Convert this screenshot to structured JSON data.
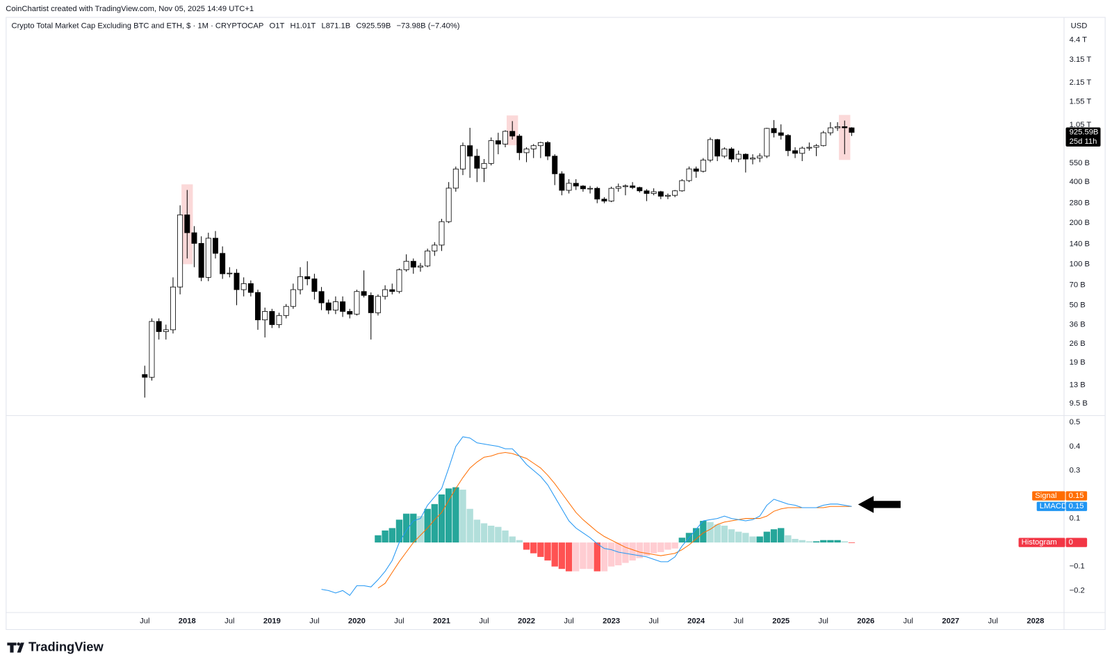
{
  "credit": "CoinChartist created with TradingView.com, Nov 05, 2025 14:49 UTC+1",
  "brand": "TradingView",
  "chart_data": {
    "type": "candlestick",
    "title": "Crypto Total Market Cap Excluding BTC and ETH, $ · 1M · CRYPTOCAP",
    "ohlc_text": [
      "O1T",
      "H1.01T",
      "L871.1B",
      "C925.59B",
      "−73.98B (−7.40%)"
    ],
    "currency": "USD",
    "last_value_label": "925.59B",
    "countdown": "25d 11h",
    "log_scale": true,
    "grid": false,
    "up_color": "#ffffff",
    "down_color": "#000000",
    "wick_color": "#000000",
    "highlights": [
      "2018-01",
      "2021-11",
      "2025-10"
    ],
    "highlight_color": "#fbd9d9",
    "x": [
      "2017-07",
      "2017-08",
      "2017-09",
      "2017-10",
      "2017-11",
      "2017-12",
      "2018-01",
      "2018-02",
      "2018-03",
      "2018-04",
      "2018-05",
      "2018-06",
      "2018-07",
      "2018-08",
      "2018-09",
      "2018-10",
      "2018-11",
      "2018-12",
      "2019-01",
      "2019-02",
      "2019-03",
      "2019-04",
      "2019-05",
      "2019-06",
      "2019-07",
      "2019-08",
      "2019-09",
      "2019-10",
      "2019-11",
      "2019-12",
      "2020-01",
      "2020-02",
      "2020-03",
      "2020-04",
      "2020-05",
      "2020-06",
      "2020-07",
      "2020-08",
      "2020-09",
      "2020-10",
      "2020-11",
      "2020-12",
      "2021-01",
      "2021-02",
      "2021-03",
      "2021-04",
      "2021-05",
      "2021-06",
      "2021-07",
      "2021-08",
      "2021-09",
      "2021-10",
      "2021-11",
      "2021-12",
      "2022-01",
      "2022-02",
      "2022-03",
      "2022-04",
      "2022-05",
      "2022-06",
      "2022-07",
      "2022-08",
      "2022-09",
      "2022-10",
      "2022-11",
      "2022-12",
      "2023-01",
      "2023-02",
      "2023-03",
      "2023-04",
      "2023-05",
      "2023-06",
      "2023-07",
      "2023-08",
      "2023-09",
      "2023-10",
      "2023-11",
      "2023-12",
      "2024-01",
      "2024-02",
      "2024-03",
      "2024-04",
      "2024-05",
      "2024-06",
      "2024-07",
      "2024-08",
      "2024-09",
      "2024-10",
      "2024-11",
      "2024-12",
      "2025-01",
      "2025-02",
      "2025-03",
      "2025-04",
      "2025-05",
      "2025-06",
      "2025-07",
      "2025-08",
      "2025-09",
      "2025-10",
      "2025-11"
    ],
    "open": [
      15.5,
      14.8,
      38,
      32,
      33,
      68,
      230,
      170,
      142,
      80,
      155,
      120,
      85,
      86,
      65,
      72,
      62,
      39,
      45,
      36,
      42,
      49,
      65,
      81,
      78,
      63,
      52,
      46,
      53,
      45,
      43,
      63,
      59,
      44,
      58,
      65,
      63,
      91,
      105,
      95,
      97,
      125,
      138,
      205,
      361,
      499,
      740,
      620,
      505,
      548,
      805,
      760,
      943,
      870,
      657,
      700,
      740,
      780,
      620,
      460,
      348,
      392,
      374,
      357,
      360,
      300,
      290,
      360,
      370,
      375,
      365,
      345,
      330,
      340,
      315,
      320,
      345,
      410,
      500,
      480,
      580,
      820,
      620,
      700,
      590,
      640,
      590,
      600,
      620,
      990,
      920,
      880,
      680,
      650,
      710,
      720,
      740,
      920,
      1000,
      1020,
      1000
    ],
    "high": [
      18,
      40,
      40,
      36,
      80,
      270,
      350,
      190,
      160,
      170,
      175,
      135,
      95,
      92,
      80,
      76,
      65,
      48,
      47,
      44,
      51,
      72,
      95,
      105,
      85,
      68,
      55,
      58,
      58,
      47,
      65,
      90,
      62,
      60,
      70,
      72,
      93,
      118,
      110,
      102,
      130,
      145,
      215,
      400,
      520,
      780,
      1000,
      700,
      590,
      850,
      920,
      960,
      1120,
      900,
      720,
      760,
      790,
      800,
      640,
      480,
      420,
      420,
      380,
      375,
      370,
      310,
      370,
      390,
      385,
      400,
      370,
      355,
      360,
      345,
      330,
      350,
      420,
      520,
      520,
      600,
      850,
      830,
      720,
      720,
      680,
      650,
      640,
      650,
      1000,
      1140,
      1060,
      900,
      720,
      730,
      780,
      760,
      950,
      1100,
      1100,
      1130,
      1010
    ],
    "low": [
      10.5,
      14,
      28,
      28,
      31,
      60,
      110,
      95,
      75,
      75,
      110,
      78,
      80,
      50,
      58,
      58,
      33,
      29,
      34,
      34,
      40,
      47,
      60,
      70,
      55,
      46,
      43,
      43,
      41,
      40,
      42,
      57,
      28,
      42,
      55,
      60,
      61,
      88,
      85,
      88,
      95,
      115,
      125,
      200,
      340,
      450,
      430,
      400,
      400,
      530,
      640,
      720,
      820,
      580,
      560,
      600,
      600,
      580,
      380,
      320,
      330,
      350,
      340,
      330,
      280,
      280,
      285,
      340,
      320,
      355,
      335,
      290,
      320,
      300,
      300,
      310,
      340,
      400,
      430,
      470,
      560,
      570,
      600,
      560,
      560,
      470,
      540,
      560,
      600,
      850,
      820,
      620,
      600,
      570,
      680,
      620,
      730,
      880,
      950,
      640,
      871.1
    ],
    "close": [
      14.8,
      38,
      32,
      33,
      68,
      230,
      170,
      142,
      80,
      155,
      120,
      85,
      86,
      65,
      72,
      62,
      39,
      45,
      36,
      42,
      49,
      65,
      81,
      78,
      63,
      52,
      46,
      53,
      45,
      43,
      63,
      59,
      44,
      58,
      65,
      63,
      91,
      105,
      95,
      97,
      125,
      138,
      205,
      361,
      499,
      740,
      620,
      505,
      548,
      805,
      760,
      943,
      870,
      657,
      700,
      740,
      780,
      620,
      460,
      348,
      392,
      374,
      357,
      360,
      300,
      290,
      360,
      370,
      375,
      365,
      345,
      330,
      340,
      315,
      320,
      345,
      410,
      500,
      480,
      580,
      820,
      620,
      700,
      590,
      640,
      590,
      600,
      620,
      990,
      920,
      880,
      680,
      650,
      710,
      720,
      740,
      920,
      1000,
      1020,
      1000,
      925.59
    ],
    "ylim": [
      7.8,
      6500
    ],
    "yticks": [
      {
        "value": 4400,
        "label": "4.4 T"
      },
      {
        "value": 3150,
        "label": "3.15 T"
      },
      {
        "value": 2150,
        "label": "2.15 T"
      },
      {
        "value": 1550,
        "label": "1.55 T"
      },
      {
        "value": 1050,
        "label": "1.05 T"
      },
      {
        "value": 550,
        "label": "550 B"
      },
      {
        "value": 400,
        "label": "400 B"
      },
      {
        "value": 280,
        "label": "280 B"
      },
      {
        "value": 200,
        "label": "200 B"
      },
      {
        "value": 140,
        "label": "140 B"
      },
      {
        "value": 100,
        "label": "100 B"
      },
      {
        "value": 70,
        "label": "70 B"
      },
      {
        "value": 50,
        "label": "50 B"
      },
      {
        "value": 36,
        "label": "36 B"
      },
      {
        "value": 26,
        "label": "26 B"
      },
      {
        "value": 19,
        "label": "19 B"
      },
      {
        "value": 13,
        "label": "13 B"
      },
      {
        "value": 9.5,
        "label": "9.5 B"
      }
    ],
    "xticks": [
      {
        "value": "2017-07",
        "label": "Jul"
      },
      {
        "value": "2018-01",
        "label": "2018"
      },
      {
        "value": "2018-07",
        "label": "Jul"
      },
      {
        "value": "2019-01",
        "label": "2019"
      },
      {
        "value": "2019-07",
        "label": "Jul"
      },
      {
        "value": "2020-01",
        "label": "2020"
      },
      {
        "value": "2020-07",
        "label": "Jul"
      },
      {
        "value": "2021-01",
        "label": "2021"
      },
      {
        "value": "2021-07",
        "label": "Jul"
      },
      {
        "value": "2022-01",
        "label": "2022"
      },
      {
        "value": "2022-07",
        "label": "Jul"
      },
      {
        "value": "2023-01",
        "label": "2023"
      },
      {
        "value": "2023-07",
        "label": "Jul"
      },
      {
        "value": "2024-01",
        "label": "2024"
      },
      {
        "value": "2024-07",
        "label": "Jul"
      },
      {
        "value": "2025-01",
        "label": "2025"
      },
      {
        "value": "2025-07",
        "label": "Jul"
      },
      {
        "value": "2026-01",
        "label": "2026"
      },
      {
        "value": "2026-07",
        "label": "Jul"
      },
      {
        "value": "2027-01",
        "label": "2027"
      },
      {
        "value": "2027-07",
        "label": "Jul"
      },
      {
        "value": "2028-01",
        "label": "2028"
      }
    ],
    "indicator": {
      "type": "combo",
      "ylim": [
        -0.29,
        0.53
      ],
      "yticks": [
        0.5,
        0.4,
        0.3,
        0.1,
        {
          "value": -0.1,
          "label": "−0.1"
        },
        {
          "value": -0.2,
          "label": "−0.2"
        }
      ],
      "series": [
        {
          "name": "LMACD",
          "kind": "line",
          "color": "#2196f3",
          "values": [
            null,
            null,
            null,
            null,
            null,
            null,
            null,
            null,
            null,
            null,
            null,
            null,
            null,
            null,
            null,
            null,
            null,
            null,
            null,
            null,
            null,
            null,
            null,
            null,
            null,
            -0.195,
            -0.2,
            -0.21,
            -0.2,
            -0.22,
            -0.18,
            -0.18,
            -0.185,
            -0.155,
            -0.12,
            -0.075,
            0,
            0.05,
            0.09,
            0.1,
            0.155,
            0.19,
            0.225,
            0.31,
            0.4,
            0.44,
            0.435,
            0.415,
            0.41,
            0.405,
            0.4,
            0.39,
            0.39,
            0.36,
            0.325,
            0.3,
            0.275,
            0.24,
            0.19,
            0.14,
            0.09,
            0.06,
            0.04,
            0.02,
            -0.005,
            -0.025,
            -0.03,
            -0.04,
            -0.045,
            -0.05,
            -0.055,
            -0.06,
            -0.07,
            -0.08,
            -0.08,
            -0.06,
            -0.015,
            0.02,
            0.055,
            0.09,
            0.095,
            0.1,
            0.11,
            0.1,
            0.095,
            0.09,
            0.095,
            0.11,
            0.155,
            0.18,
            0.17,
            0.16,
            0.155,
            0.145,
            0.145,
            0.145,
            0.155,
            0.16,
            0.16,
            0.155,
            0.15
          ]
        },
        {
          "name": "Signal",
          "kind": "line",
          "color": "#ff6d00",
          "values": [
            null,
            null,
            null,
            null,
            null,
            null,
            null,
            null,
            null,
            null,
            null,
            null,
            null,
            null,
            null,
            null,
            null,
            null,
            null,
            null,
            null,
            null,
            null,
            null,
            null,
            null,
            null,
            null,
            null,
            null,
            null,
            null,
            null,
            -0.19,
            -0.17,
            -0.125,
            -0.08,
            -0.04,
            0,
            0.03,
            0.06,
            0.095,
            0.125,
            0.175,
            0.225,
            0.27,
            0.31,
            0.335,
            0.355,
            0.36,
            0.37,
            0.375,
            0.37,
            0.36,
            0.35,
            0.33,
            0.31,
            0.28,
            0.245,
            0.205,
            0.165,
            0.125,
            0.095,
            0.07,
            0.045,
            0.025,
            0.01,
            -0.005,
            -0.02,
            -0.03,
            -0.04,
            -0.045,
            -0.05,
            -0.055,
            -0.05,
            -0.045,
            -0.03,
            -0.01,
            0.015,
            0.04,
            0.055,
            0.075,
            0.085,
            0.09,
            0.095,
            0.1,
            0.1,
            0.1,
            0.11,
            0.13,
            0.14,
            0.145,
            0.145,
            0.145,
            0.145,
            0.145,
            0.145,
            0.15,
            0.15,
            0.15,
            0.15
          ]
        },
        {
          "name": "Histogram",
          "kind": "bar",
          "color": "#f23645",
          "colors": [
            "#26a69a",
            "#b2dfdb",
            "#ffcdd2",
            "#ff5252"
          ],
          "values": [
            null,
            null,
            null,
            null,
            null,
            null,
            null,
            null,
            null,
            null,
            null,
            null,
            null,
            null,
            null,
            null,
            null,
            null,
            null,
            null,
            null,
            null,
            null,
            null,
            null,
            null,
            null,
            null,
            null,
            null,
            null,
            null,
            null,
            0.03,
            0.05,
            0.06,
            0.095,
            0.12,
            0.12,
            0.11,
            0.14,
            0.16,
            0.2,
            0.225,
            0.23,
            0.22,
            0.14,
            0.095,
            0.08,
            0.07,
            0.065,
            0.05,
            0.025,
            0.01,
            -0.03,
            -0.045,
            -0.06,
            -0.075,
            -0.1,
            -0.11,
            -0.12,
            -0.12,
            -0.11,
            -0.11,
            -0.12,
            -0.12,
            -0.1,
            -0.095,
            -0.085,
            -0.075,
            -0.065,
            -0.055,
            -0.045,
            -0.04,
            -0.03,
            -0.025,
            0.02,
            0.04,
            0.06,
            0.09,
            0.085,
            0.075,
            0.07,
            0.055,
            0.045,
            0.04,
            0.025,
            0.025,
            0.045,
            0.055,
            0.06,
            0.03,
            0.015,
            0.01,
            0.005,
            0.005,
            0.01,
            0.01,
            0.01,
            0.005,
            0
          ]
        }
      ]
    }
  }
}
